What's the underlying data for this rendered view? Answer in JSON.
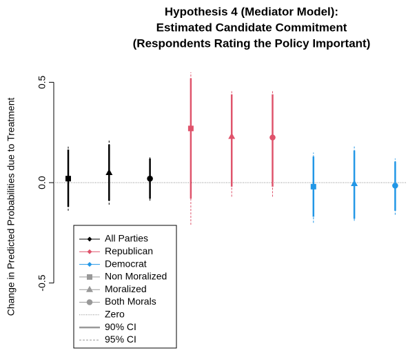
{
  "chart_data": {
    "type": "pointrange",
    "title": [
      "Hypothesis 4 (Mediator Model):",
      "Estimated Candidate Commitment",
      "(Respondents Rating the Policy Important)"
    ],
    "y_label": "Change in Predicted Probabilities due to Treatment",
    "ylim": [
      -0.8,
      0.57
    ],
    "yticks": [
      -0.5,
      {
        "value": 0,
        "label": "0.0"
      },
      0.5
    ],
    "markers": [
      {
        "name": "Non Moralized",
        "shape": "square"
      },
      {
        "name": "Moralized",
        "shape": "triangle"
      },
      {
        "name": "Both Morals",
        "shape": "circle"
      }
    ],
    "series": [
      {
        "name": "All Parties",
        "color": "#000000",
        "values": [
          0.02,
          0.05,
          0.02
        ],
        "ci90": [
          [
            -0.12,
            0.165
          ],
          [
            -0.09,
            0.19
          ],
          [
            -0.08,
            0.12
          ]
        ],
        "ci95": [
          [
            -0.14,
            0.18
          ],
          [
            -0.11,
            0.21
          ],
          [
            -0.09,
            0.13
          ]
        ]
      },
      {
        "name": "Republican",
        "color": "#df536b",
        "values": [
          0.27,
          0.23,
          0.225
        ],
        "ci90": [
          [
            -0.08,
            0.52
          ],
          [
            -0.02,
            0.44
          ],
          [
            -0.02,
            0.44
          ]
        ],
        "ci95": [
          [
            -0.21,
            0.55
          ],
          [
            -0.07,
            0.46
          ],
          [
            -0.07,
            0.46
          ]
        ]
      },
      {
        "name": "Democrat",
        "color": "#2297e6",
        "values": [
          -0.02,
          -0.005,
          -0.015
        ],
        "ci90": [
          [
            -0.17,
            0.13
          ],
          [
            -0.18,
            0.16
          ],
          [
            -0.14,
            0.105
          ]
        ],
        "ci95": [
          [
            -0.2,
            0.15
          ],
          [
            -0.19,
            0.18
          ],
          [
            -0.16,
            0.12
          ]
        ]
      }
    ],
    "reference_line": {
      "name": "Zero",
      "value": 0
    },
    "ci_legend": [
      "90% CI",
      "95% CI"
    ]
  }
}
